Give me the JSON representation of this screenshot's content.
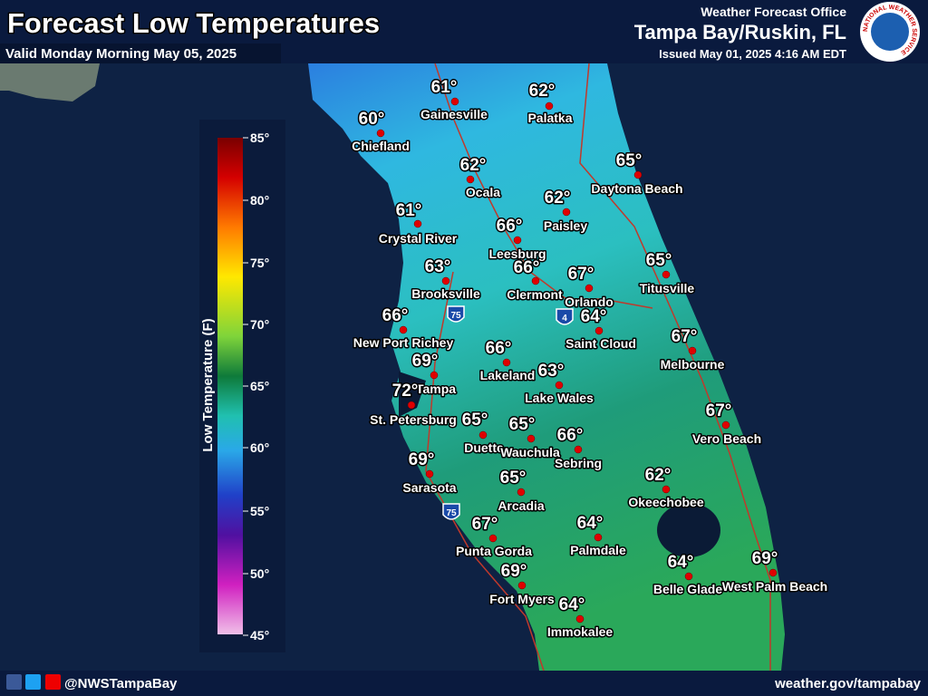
{
  "header": {
    "title": "Forecast Low Temperatures",
    "valid": "Valid Monday Morning May 05, 2025",
    "office": "Weather Forecast Office",
    "location": "Tampa Bay/Ruskin, FL",
    "issued": "Issued May 01, 2025 4:16 AM EDT",
    "logo": "NATIONAL WEATHER SERVICE"
  },
  "legend": {
    "label": "Low Temperature (F)",
    "ticks": [
      "85°",
      "80°",
      "75°",
      "70°",
      "65°",
      "60°",
      "55°",
      "50°",
      "45°"
    ]
  },
  "highways": [
    "75",
    "4",
    "75"
  ],
  "cities": [
    {
      "name": "Gainesville",
      "temp": "61°"
    },
    {
      "name": "Palatka",
      "temp": "62°"
    },
    {
      "name": "Chiefland",
      "temp": "60°"
    },
    {
      "name": "Ocala",
      "temp": "62°"
    },
    {
      "name": "Daytona Beach",
      "temp": "65°"
    },
    {
      "name": "Paisley",
      "temp": "62°"
    },
    {
      "name": "Crystal River",
      "temp": "61°"
    },
    {
      "name": "Leesburg",
      "temp": "66°"
    },
    {
      "name": "Brooksville",
      "temp": "63°"
    },
    {
      "name": "Clermont",
      "temp": "66°"
    },
    {
      "name": "Orlando",
      "temp": "67°"
    },
    {
      "name": "Titusville",
      "temp": "65°"
    },
    {
      "name": "New Port Richey",
      "temp": "66°"
    },
    {
      "name": "Saint Cloud",
      "temp": "64°"
    },
    {
      "name": "Melbourne",
      "temp": "67°"
    },
    {
      "name": "Tampa",
      "temp": "69°"
    },
    {
      "name": "Lakeland",
      "temp": "66°"
    },
    {
      "name": "Lake Wales",
      "temp": "63°"
    },
    {
      "name": "St. Petersburg",
      "temp": "72°"
    },
    {
      "name": "Duette",
      "temp": "65°"
    },
    {
      "name": "Wauchula",
      "temp": "65°"
    },
    {
      "name": "Sebring",
      "temp": "66°"
    },
    {
      "name": "Vero Beach",
      "temp": "67°"
    },
    {
      "name": "Sarasota",
      "temp": "69°"
    },
    {
      "name": "Arcadia",
      "temp": "65°"
    },
    {
      "name": "Okeechobee",
      "temp": "62°"
    },
    {
      "name": "Punta Gorda",
      "temp": "67°"
    },
    {
      "name": "Palmdale",
      "temp": "64°"
    },
    {
      "name": "Fort Myers",
      "temp": "69°"
    },
    {
      "name": "Belle Glade",
      "temp": "64°"
    },
    {
      "name": "West Palm Beach",
      "temp": "69°"
    },
    {
      "name": "Immokalee",
      "temp": "64°"
    }
  ],
  "footer": {
    "handle": "@NWSTampaBay",
    "url": "weather.gov/tampabay"
  }
}
